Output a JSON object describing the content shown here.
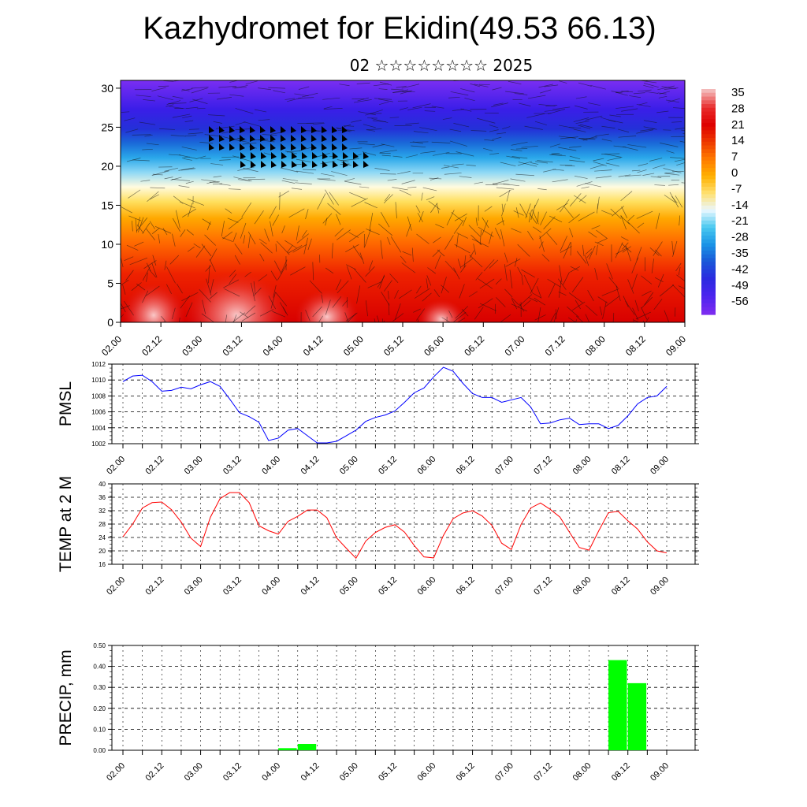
{
  "title": "Kazhydromet for Ekidin(49.53 66.13)",
  "subtitle": "02 ☆☆☆☆☆☆☆☆ 2025",
  "chart_data": [
    {
      "type": "heatmap",
      "name": "temperature-height-section",
      "x_ticks": [
        "02.00",
        "02.12",
        "03.00",
        "03.12",
        "04.00",
        "04.12",
        "05.00",
        "05.12",
        "06.00",
        "06.12",
        "07.00",
        "07.12",
        "08.00",
        "08.12",
        "09.00"
      ],
      "y_ticks": [
        0,
        5,
        10,
        15,
        20,
        25,
        30
      ],
      "ylim": [
        0,
        31
      ],
      "colorbar_labels": [
        "35",
        "28",
        "21",
        "14",
        "7",
        "0",
        "-7",
        "-14",
        "-21",
        "-28",
        "-35",
        "-42",
        "-49",
        "-56"
      ],
      "colorbar_colors": [
        "#f3b8b8",
        "#e82a2a",
        "#de0000",
        "#ee3a00",
        "#ff7a00",
        "#ffb000",
        "#ffe070",
        "#eaf7ff",
        "#49c9f0",
        "#1a94e6",
        "#1a58d8",
        "#2b2be0",
        "#4a24ee",
        "#7a2cf0"
      ]
    },
    {
      "type": "line",
      "ylabel": "PMSL",
      "color": "#0000ff",
      "ylim": [
        1002,
        1012
      ],
      "y_ticks": [
        "1002",
        "1004",
        "1006",
        "1008",
        "1010",
        "1012"
      ],
      "x_ticks": [
        "02.00",
        "02.12",
        "03.00",
        "03.12",
        "04.00",
        "04.12",
        "05.00",
        "05.12",
        "06.00",
        "06.12",
        "07.00",
        "07.12",
        "08.00",
        "08.12",
        "09.00"
      ],
      "x_step_hours": 3,
      "values": [
        1009.8,
        1010.5,
        1010.6,
        1009.8,
        1008.6,
        1008.7,
        1009.1,
        1008.9,
        1009.4,
        1009.8,
        1009.2,
        1007.6,
        1005.9,
        1005.4,
        1004.7,
        1002.4,
        1002.7,
        1003.7,
        1003.9,
        1003.0,
        1002.1,
        1002.1,
        1002.3,
        1003.0,
        1003.7,
        1004.8,
        1005.3,
        1005.6,
        1006.1,
        1007.2,
        1008.4,
        1009.0,
        1010.4,
        1011.6,
        1011.1,
        1009.6,
        1008.3,
        1007.8,
        1007.8,
        1007.2,
        1007.5,
        1007.8,
        1006.6,
        1004.5,
        1004.6,
        1005.0,
        1005.2,
        1004.4,
        1004.5,
        1004.5,
        1003.9,
        1004.3,
        1005.5,
        1007.0,
        1007.8,
        1008.0,
        1009.2
      ]
    },
    {
      "type": "line",
      "ylabel": "TEMP at 2 M",
      "color": "#ff0000",
      "ylim": [
        16,
        40
      ],
      "y_ticks": [
        "16",
        "20",
        "24",
        "28",
        "32",
        "36",
        "40"
      ],
      "x_ticks": [
        "02.00",
        "02.12",
        "03.00",
        "03.12",
        "04.00",
        "04.12",
        "05.00",
        "05.12",
        "06.00",
        "06.12",
        "07.00",
        "07.12",
        "08.00",
        "08.12",
        "09.00"
      ],
      "x_step_hours": 3,
      "values": [
        24.2,
        28.0,
        32.8,
        34.4,
        34.6,
        32.3,
        28.6,
        23.8,
        21.3,
        30.0,
        35.6,
        37.4,
        37.4,
        34.4,
        27.5,
        26.0,
        25.0,
        28.8,
        30.3,
        32.2,
        32.2,
        29.9,
        23.9,
        20.8,
        17.8,
        22.9,
        25.5,
        27.0,
        27.8,
        25.6,
        21.6,
        18.2,
        17.9,
        24.6,
        29.6,
        31.3,
        32.0,
        30.4,
        27.6,
        22.3,
        20.4,
        27.9,
        32.8,
        34.3,
        32.4,
        30.1,
        25.5,
        21.0,
        20.2,
        26.0,
        31.4,
        31.8,
        29.0,
        26.5,
        22.7,
        20.0,
        19.4
      ]
    },
    {
      "type": "bar",
      "ylabel": "PRECIP, mm",
      "color": "#00ff00",
      "ylim": [
        0,
        0.5
      ],
      "y_ticks": [
        "0.00",
        "0.10",
        "0.20",
        "0.30",
        "0.40",
        "0.50"
      ],
      "x_ticks": [
        "02.00",
        "02.12",
        "03.00",
        "03.12",
        "04.00",
        "04.12",
        "05.00",
        "05.12",
        "06.00",
        "06.12",
        "07.00",
        "07.12",
        "08.00",
        "08.12",
        "09.00"
      ],
      "bars": [
        {
          "hour": 48,
          "value": 0.01
        },
        {
          "hour": 54,
          "value": 0.03
        },
        {
          "hour": 150,
          "value": 0.43
        },
        {
          "hour": 156,
          "value": 0.32
        }
      ]
    }
  ]
}
